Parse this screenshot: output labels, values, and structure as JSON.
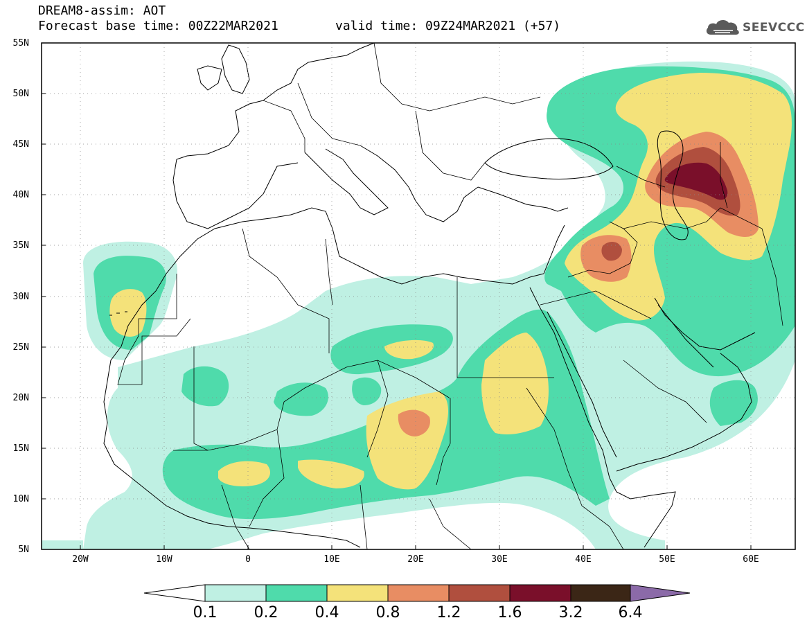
{
  "header": {
    "title": "DREAM8-assim: AOT",
    "base_time": "Forecast base time: 00Z22MAR2021",
    "valid_time": "valid time: 09Z24MAR2021 (+57)"
  },
  "logo": {
    "text": "SEEVCCC",
    "icon": "cloud-icon"
  },
  "axes": {
    "lat_labels": [
      "55N",
      "50N",
      "45N",
      "40N",
      "35N",
      "30N",
      "25N",
      "20N",
      "15N",
      "10N",
      "5N"
    ],
    "lon_labels": [
      "20W",
      "10W",
      "0",
      "10E",
      "20E",
      "30E",
      "40E",
      "50E",
      "60E"
    ],
    "lat_range": [
      5,
      55
    ],
    "lon_range": [
      -25,
      65
    ]
  },
  "colorbar": {
    "labels": [
      "0.1",
      "0.2",
      "0.4",
      "0.8",
      "1.2",
      "1.6",
      "3.2",
      "6.4"
    ],
    "colors": [
      "#ffffff",
      "#bff0e3",
      "#4fdbab",
      "#f4e27a",
      "#e88d63",
      "#b04f3e",
      "#7a0f2a",
      "#3b2616",
      "#8b6aa8"
    ]
  }
}
